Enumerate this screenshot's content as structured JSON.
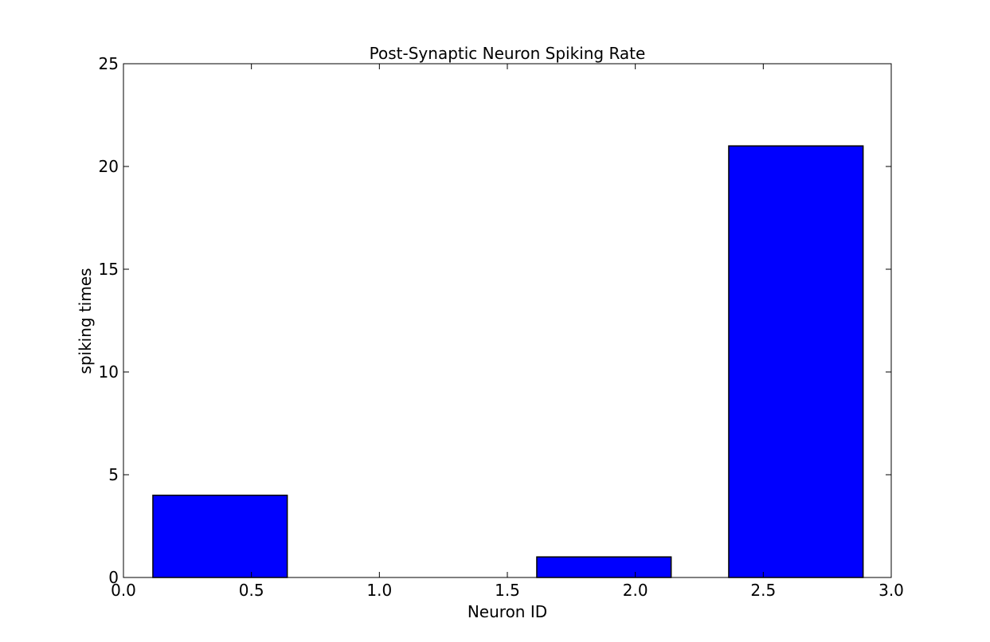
{
  "chart_data": {
    "type": "bar",
    "title": "Post-Synaptic Neuron Spiking Rate",
    "xlabel": "Neuron ID",
    "ylabel": "spiking times",
    "xlim": [
      0.0,
      3.0
    ],
    "ylim": [
      0,
      25
    ],
    "x_ticks": [
      0.0,
      0.5,
      1.0,
      1.5,
      2.0,
      2.5,
      3.0
    ],
    "x_tick_labels": [
      "0.0",
      "0.5",
      "1.0",
      "1.5",
      "2.0",
      "2.5",
      "3.0"
    ],
    "y_ticks": [
      0,
      5,
      10,
      15,
      20,
      25
    ],
    "y_tick_labels": [
      "0",
      "5",
      "10",
      "15",
      "20",
      "25"
    ],
    "bar_width": 0.525,
    "bars": [
      {
        "x_left": 0.115,
        "value": 4
      },
      {
        "x_left": 0.865,
        "value": 0
      },
      {
        "x_left": 1.615,
        "value": 1
      },
      {
        "x_left": 2.365,
        "value": 21
      }
    ],
    "bar_color": "#0000ff",
    "edge_color": "#000000",
    "grid": false,
    "legend": "none"
  }
}
